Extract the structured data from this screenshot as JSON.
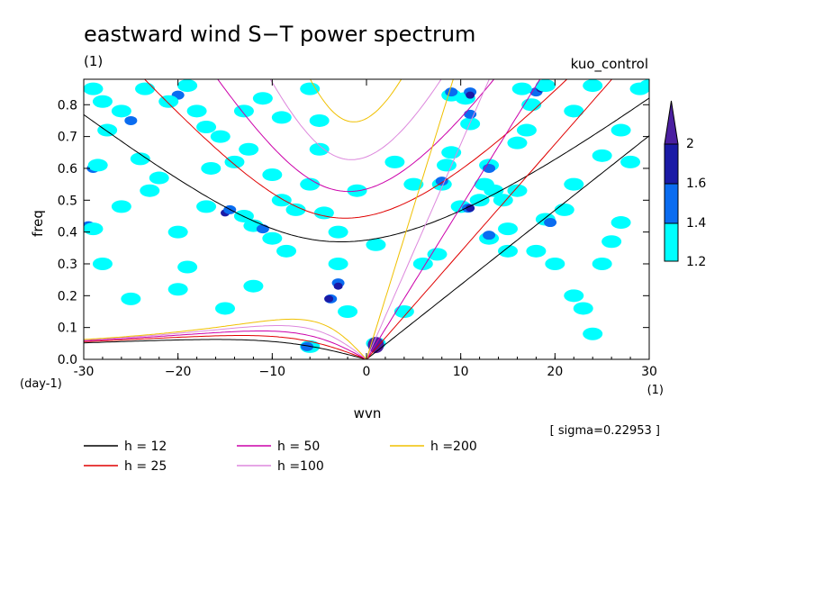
{
  "chart_data": {
    "type": "heatmap",
    "title": "eastward wind S−T power spectrum",
    "subtitle_left": "(1)",
    "subtitle_right": "kuo_control",
    "xlabel": "wvn",
    "ylabel": "freq",
    "x_unit": "(1)",
    "y_unit": "(day-1)",
    "xlim": [
      -30,
      30
    ],
    "ylim": [
      0,
      0.88
    ],
    "x_ticks": [
      -30,
      -20,
      -10,
      0,
      10,
      20,
      30
    ],
    "x_tick_labels": [
      "-30",
      "−20",
      "−10",
      "0",
      "10",
      "20",
      "30"
    ],
    "y_ticks": [
      0,
      0.1,
      0.2,
      0.3,
      0.4,
      0.5,
      0.6,
      0.7,
      0.8
    ],
    "y_tick_labels": [
      "0.0",
      "0.1",
      "0.2",
      "0.3",
      "0.4",
      "0.5",
      "0.6",
      "0.7",
      "0.8"
    ],
    "sigma_note": "[ sigma=0.22953 ]",
    "colorbar": {
      "levels": [
        1.2,
        1.4,
        1.6,
        2
      ],
      "level_labels": [
        "1.2",
        "1.4",
        "1.6",
        "2"
      ],
      "colors": [
        "#00ffff",
        "#0a6cf0",
        "#1a1aa6",
        "#4b1fa0"
      ]
    },
    "dispersion_curves": [
      {
        "name": "h = 12",
        "h": 12,
        "color": "#000000"
      },
      {
        "name": "h = 25",
        "h": 25,
        "color": "#e00000"
      },
      {
        "name": "h = 50",
        "h": 50,
        "color": "#cc00aa"
      },
      {
        "name": "h =100",
        "h": 100,
        "color": "#dd88dd"
      },
      {
        "name": "h =200",
        "h": 200,
        "color": "#f0c000"
      }
    ],
    "blobs": [
      {
        "x": -29,
        "y": 0.85,
        "level": 0
      },
      {
        "x": -28,
        "y": 0.81,
        "level": 0
      },
      {
        "x": -25,
        "y": 0.75,
        "level": 1
      },
      {
        "x": -26,
        "y": 0.78,
        "level": 0
      },
      {
        "x": -27.5,
        "y": 0.72,
        "level": 0
      },
      {
        "x": -29,
        "y": 0.6,
        "level": 1
      },
      {
        "x": -28.5,
        "y": 0.61,
        "level": 0
      },
      {
        "x": -29.5,
        "y": 0.42,
        "level": 1
      },
      {
        "x": -29,
        "y": 0.41,
        "level": 0
      },
      {
        "x": -23,
        "y": 0.53,
        "level": 0
      },
      {
        "x": -22,
        "y": 0.57,
        "level": 0
      },
      {
        "x": -24,
        "y": 0.63,
        "level": 0
      },
      {
        "x": -23.5,
        "y": 0.85,
        "level": 0
      },
      {
        "x": -20,
        "y": 0.83,
        "level": 1
      },
      {
        "x": -21,
        "y": 0.81,
        "level": 0
      },
      {
        "x": -19,
        "y": 0.86,
        "level": 0
      },
      {
        "x": -18,
        "y": 0.78,
        "level": 0
      },
      {
        "x": -17,
        "y": 0.73,
        "level": 0
      },
      {
        "x": -15.5,
        "y": 0.7,
        "level": 0
      },
      {
        "x": -16.5,
        "y": 0.6,
        "level": 0
      },
      {
        "x": -14,
        "y": 0.62,
        "level": 0
      },
      {
        "x": -17,
        "y": 0.48,
        "level": 0
      },
      {
        "x": -15,
        "y": 0.46,
        "level": 2
      },
      {
        "x": -14.5,
        "y": 0.47,
        "level": 1
      },
      {
        "x": -13,
        "y": 0.45,
        "level": 0
      },
      {
        "x": -12,
        "y": 0.42,
        "level": 0
      },
      {
        "x": -11,
        "y": 0.41,
        "level": 1
      },
      {
        "x": -10,
        "y": 0.38,
        "level": 0
      },
      {
        "x": -9,
        "y": 0.5,
        "level": 0
      },
      {
        "x": -10,
        "y": 0.58,
        "level": 0
      },
      {
        "x": -12.5,
        "y": 0.66,
        "level": 0
      },
      {
        "x": -13,
        "y": 0.78,
        "level": 0
      },
      {
        "x": -11,
        "y": 0.82,
        "level": 0
      },
      {
        "x": -9,
        "y": 0.76,
        "level": 0
      },
      {
        "x": -6,
        "y": 0.85,
        "level": 0
      },
      {
        "x": -5,
        "y": 0.66,
        "level": 0
      },
      {
        "x": -6,
        "y": 0.55,
        "level": 0
      },
      {
        "x": -7.5,
        "y": 0.47,
        "level": 0
      },
      {
        "x": -4.5,
        "y": 0.46,
        "level": 0
      },
      {
        "x": -3,
        "y": 0.4,
        "level": 0
      },
      {
        "x": -5,
        "y": 0.75,
        "level": 0
      },
      {
        "x": -3,
        "y": 0.3,
        "level": 0
      },
      {
        "x": -3,
        "y": 0.24,
        "level": 1
      },
      {
        "x": -3,
        "y": 0.23,
        "level": 2
      },
      {
        "x": -3.8,
        "y": 0.19,
        "level": 1
      },
      {
        "x": -4,
        "y": 0.19,
        "level": 2
      },
      {
        "x": -2,
        "y": 0.15,
        "level": 0
      },
      {
        "x": -6,
        "y": 0.04,
        "level": 0
      },
      {
        "x": -6.3,
        "y": 0.04,
        "level": 1
      },
      {
        "x": -8.5,
        "y": 0.34,
        "level": 0
      },
      {
        "x": -19,
        "y": 0.29,
        "level": 0
      },
      {
        "x": -20,
        "y": 0.22,
        "level": 0
      },
      {
        "x": -25,
        "y": 0.19,
        "level": 0
      },
      {
        "x": -28,
        "y": 0.3,
        "level": 0
      },
      {
        "x": -15,
        "y": 0.16,
        "level": 0
      },
      {
        "x": -12,
        "y": 0.23,
        "level": 0
      },
      {
        "x": -26,
        "y": 0.48,
        "level": 0
      },
      {
        "x": -20,
        "y": 0.4,
        "level": 0
      },
      {
        "x": 1,
        "y": 0.05,
        "level": 0
      },
      {
        "x": 1,
        "y": 0.045,
        "level": 1
      },
      {
        "x": 1,
        "y": 0.045,
        "level": 3
      },
      {
        "x": 6,
        "y": 0.3,
        "level": 0
      },
      {
        "x": 7.5,
        "y": 0.33,
        "level": 0
      },
      {
        "x": 8,
        "y": 0.55,
        "level": 0
      },
      {
        "x": 8,
        "y": 0.56,
        "level": 1
      },
      {
        "x": 8.5,
        "y": 0.61,
        "level": 0
      },
      {
        "x": 9,
        "y": 0.65,
        "level": 0
      },
      {
        "x": 10,
        "y": 0.48,
        "level": 0
      },
      {
        "x": 10.8,
        "y": 0.475,
        "level": 1
      },
      {
        "x": 11,
        "y": 0.475,
        "level": 2
      },
      {
        "x": 12,
        "y": 0.5,
        "level": 0
      },
      {
        "x": 11,
        "y": 0.74,
        "level": 0
      },
      {
        "x": 11,
        "y": 0.77,
        "level": 1
      },
      {
        "x": 10.5,
        "y": 0.82,
        "level": 0
      },
      {
        "x": 11,
        "y": 0.84,
        "level": 1
      },
      {
        "x": 11,
        "y": 0.83,
        "level": 2
      },
      {
        "x": 9,
        "y": 0.83,
        "level": 0
      },
      {
        "x": 9,
        "y": 0.84,
        "level": 1
      },
      {
        "x": 13,
        "y": 0.61,
        "level": 0
      },
      {
        "x": 13,
        "y": 0.6,
        "level": 1
      },
      {
        "x": 12.5,
        "y": 0.55,
        "level": 0
      },
      {
        "x": 13.5,
        "y": 0.53,
        "level": 0
      },
      {
        "x": 14.5,
        "y": 0.5,
        "level": 0
      },
      {
        "x": 13,
        "y": 0.38,
        "level": 0
      },
      {
        "x": 13,
        "y": 0.39,
        "level": 1
      },
      {
        "x": 15,
        "y": 0.41,
        "level": 0
      },
      {
        "x": 16,
        "y": 0.68,
        "level": 0
      },
      {
        "x": 17,
        "y": 0.72,
        "level": 0
      },
      {
        "x": 17.5,
        "y": 0.8,
        "level": 0
      },
      {
        "x": 18,
        "y": 0.84,
        "level": 1
      },
      {
        "x": 18.5,
        "y": 0.85,
        "level": 2
      },
      {
        "x": 19,
        "y": 0.86,
        "level": 0
      },
      {
        "x": 16.5,
        "y": 0.85,
        "level": 0
      },
      {
        "x": 19,
        "y": 0.44,
        "level": 0
      },
      {
        "x": 19.5,
        "y": 0.43,
        "level": 1
      },
      {
        "x": 22,
        "y": 0.55,
        "level": 0
      },
      {
        "x": 21,
        "y": 0.47,
        "level": 0
      },
      {
        "x": 18,
        "y": 0.34,
        "level": 0
      },
      {
        "x": 22,
        "y": 0.2,
        "level": 0
      },
      {
        "x": 23,
        "y": 0.16,
        "level": 0
      },
      {
        "x": 24,
        "y": 0.08,
        "level": 0
      },
      {
        "x": 25,
        "y": 0.3,
        "level": 0
      },
      {
        "x": 28,
        "y": 0.62,
        "level": 0
      },
      {
        "x": 29,
        "y": 0.85,
        "level": 0
      },
      {
        "x": 30,
        "y": 0.86,
        "level": 0
      },
      {
        "x": 27,
        "y": 0.72,
        "level": 0
      },
      {
        "x": 25,
        "y": 0.64,
        "level": 0
      },
      {
        "x": 24,
        "y": 0.86,
        "level": 0
      },
      {
        "x": 22,
        "y": 0.78,
        "level": 0
      },
      {
        "x": 16,
        "y": 0.53,
        "level": 0
      },
      {
        "x": 4,
        "y": 0.15,
        "level": 0
      },
      {
        "x": 15,
        "y": 0.34,
        "level": 0
      },
      {
        "x": 27,
        "y": 0.43,
        "level": 0
      },
      {
        "x": 26,
        "y": 0.37,
        "level": 0
      },
      {
        "x": 20,
        "y": 0.3,
        "level": 0
      },
      {
        "x": 3,
        "y": 0.62,
        "level": 0
      },
      {
        "x": 5,
        "y": 0.55,
        "level": 0
      },
      {
        "x": -1,
        "y": 0.53,
        "level": 0
      },
      {
        "x": 1,
        "y": 0.36,
        "level": 0
      }
    ]
  }
}
